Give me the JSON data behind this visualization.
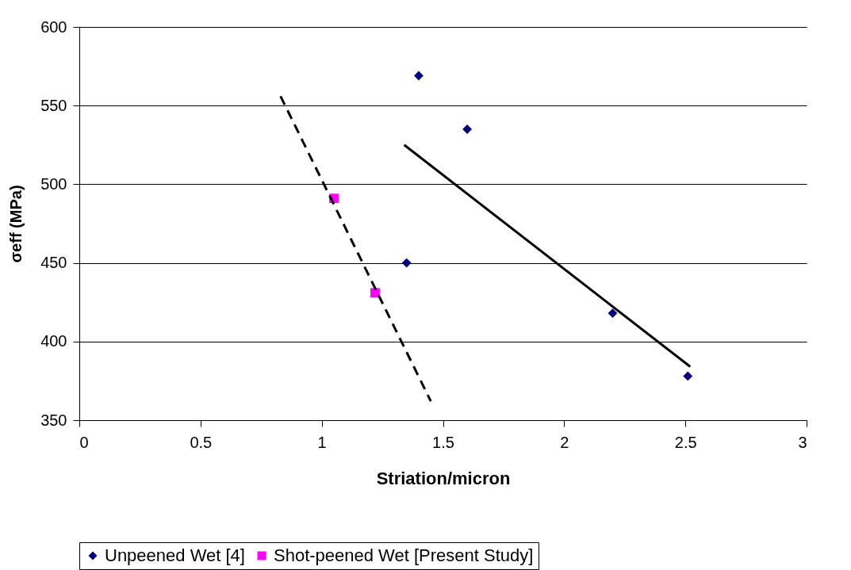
{
  "chart_data": {
    "type": "scatter",
    "xlabel": "Striation/micron",
    "ylabel": "σeff (MPa)",
    "xlim": [
      0,
      3
    ],
    "xticks": [
      0,
      0.5,
      1,
      1.5,
      2,
      2.5,
      3
    ],
    "ylim": [
      350,
      600
    ],
    "yticks": [
      350,
      400,
      450,
      500,
      550,
      600
    ],
    "grid": "y",
    "legend": "bottom",
    "series": [
      {
        "name": "Unpeened Wet [4]",
        "marker": "diamond",
        "color": "#000080",
        "x": [
          1.4,
          1.6,
          1.35,
          2.2,
          2.51
        ],
        "values": [
          569,
          535,
          450,
          418,
          378
        ]
      },
      {
        "name": "Shot-peened Wet [Present Study]",
        "marker": "square",
        "color": "#ff00ff",
        "x": [
          1.05,
          1.22
        ],
        "values": [
          491,
          431
        ]
      },
      {
        "type": "line",
        "line_style": "solid",
        "color": "#000000",
        "x": [
          1.34,
          2.52
        ],
        "values": [
          525,
          384
        ]
      },
      {
        "type": "line",
        "line_style": "dashed",
        "color": "#000000",
        "x": [
          0.83,
          1.45
        ],
        "values": [
          556,
          362
        ]
      }
    ]
  }
}
